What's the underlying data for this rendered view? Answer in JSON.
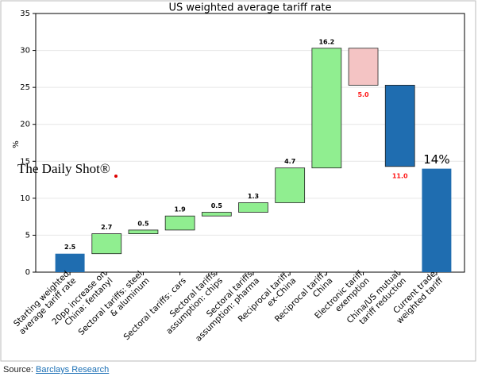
{
  "chart_data": {
    "type": "waterfall",
    "title": "US weighted average tariff rate",
    "y_label": "%",
    "categories": [
      [
        "Starting weighted",
        "average tariff rate"
      ],
      [
        "20pp increase on",
        "China: fentanyl"
      ],
      [
        "Sectoral tariffs: steel",
        "& aluminum"
      ],
      [
        "Sectoral tariffs: cars"
      ],
      [
        "Sectoral tariffs",
        "assumption: chips"
      ],
      [
        "Sectoral tariffs",
        "assumption: pharma"
      ],
      [
        "Reciprocal tariff,",
        "ex-China"
      ],
      [
        "Reciprocal tariff,",
        "China"
      ],
      [
        "Electronic tariff",
        "exemption"
      ],
      [
        "China/US mutual",
        "tariff reduction"
      ],
      [
        "Current trade",
        "weighted tariff"
      ]
    ],
    "values": [
      2.5,
      2.7,
      0.5,
      1.9,
      0.5,
      1.3,
      4.7,
      16.2,
      -5.0,
      -11.0,
      14
    ],
    "value_labels": [
      "2.5",
      "2.7",
      "0.5",
      "1.9",
      "0.5",
      "1.3",
      "4.7",
      "16.2",
      "5.0",
      "11.0",
      "14%"
    ],
    "measure": [
      "absolute",
      "relative",
      "relative",
      "relative",
      "relative",
      "relative",
      "relative",
      "relative",
      "relative",
      "relative",
      "total"
    ],
    "colors": [
      "#1f6db0",
      "#90ee90",
      "#90ee90",
      "#90ee90",
      "#90ee90",
      "#90ee90",
      "#90ee90",
      "#90ee90",
      "#f4c4c4",
      "#1f6db0",
      "#1f6db0"
    ],
    "negative_label_color": "#ff1a1a",
    "ylim": [
      0,
      35
    ],
    "yticks": [
      0,
      5,
      10,
      15,
      20,
      25,
      30,
      35
    ],
    "grid": true,
    "watermark": "The Daily Shot®"
  },
  "source": {
    "label": "Source:",
    "link": "Barclays Research"
  }
}
